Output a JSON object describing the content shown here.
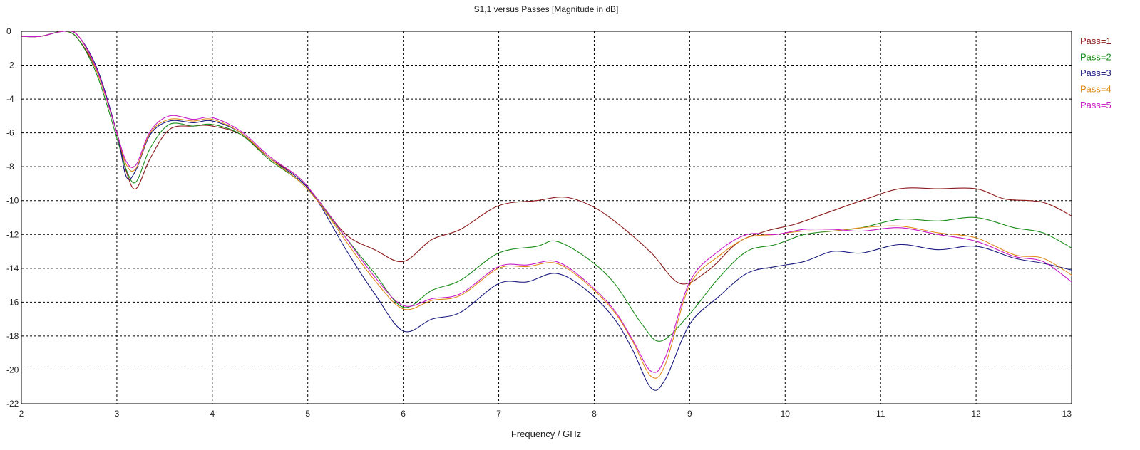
{
  "chart_data": {
    "type": "line",
    "title": "S1,1 versus Passes [Magnitude in dB]",
    "xlabel": "Frequency / GHz",
    "ylabel": "",
    "xlim": [
      2,
      13
    ],
    "ylim": [
      -22,
      0
    ],
    "x_ticks": [
      "2",
      "3",
      "4",
      "5",
      "6",
      "7",
      "8",
      "9",
      "10",
      "11",
      "12",
      "13"
    ],
    "y_ticks": [
      "0",
      "-2",
      "-4",
      "-6",
      "-8",
      "-10",
      "-12",
      "-14",
      "-16",
      "-18",
      "-20",
      "-22"
    ],
    "grid": true,
    "legend_position": "right",
    "series": [
      {
        "name": "Pass=1",
        "color": "#8b1a1a",
        "x": [
          2.0,
          2.2,
          2.45,
          2.6,
          2.8,
          3.0,
          3.1,
          3.2,
          3.35,
          3.55,
          3.8,
          4.0,
          4.3,
          4.6,
          4.9,
          5.1,
          5.4,
          5.7,
          6.0,
          6.3,
          6.6,
          7.0,
          7.4,
          7.7,
          8.0,
          8.3,
          8.6,
          8.9,
          9.2,
          9.5,
          9.8,
          10.1,
          10.4,
          10.8,
          11.2,
          11.6,
          12.0,
          12.3,
          12.7,
          13.0
        ],
        "y": [
          -0.3,
          -0.3,
          0.0,
          -0.5,
          -2.5,
          -6.0,
          -8.3,
          -9.3,
          -7.5,
          -5.8,
          -5.6,
          -5.6,
          -6.1,
          -7.5,
          -8.6,
          -9.9,
          -12.0,
          -12.9,
          -13.6,
          -12.3,
          -11.7,
          -10.3,
          -10.0,
          -9.8,
          -10.4,
          -11.6,
          -13.1,
          -14.9,
          -14.1,
          -12.5,
          -11.8,
          -11.4,
          -10.8,
          -10.0,
          -9.3,
          -9.3,
          -9.3,
          -9.9,
          -10.1,
          -10.9
        ]
      },
      {
        "name": "Pass=2",
        "color": "#1a8c1a",
        "x": [
          2.0,
          2.2,
          2.45,
          2.6,
          2.8,
          3.0,
          3.1,
          3.2,
          3.35,
          3.55,
          3.8,
          4.0,
          4.3,
          4.6,
          4.9,
          5.1,
          5.4,
          5.7,
          6.0,
          6.3,
          6.6,
          7.0,
          7.4,
          7.6,
          7.9,
          8.2,
          8.5,
          8.7,
          9.0,
          9.3,
          9.6,
          9.9,
          10.2,
          10.5,
          10.8,
          11.2,
          11.6,
          12.0,
          12.4,
          12.7,
          13.0
        ],
        "y": [
          -0.3,
          -0.3,
          0.0,
          -0.5,
          -2.7,
          -6.3,
          -8.2,
          -8.9,
          -6.9,
          -5.5,
          -5.6,
          -5.5,
          -6.1,
          -7.6,
          -8.8,
          -10.0,
          -12.2,
          -14.3,
          -16.3,
          -15.3,
          -14.7,
          -13.1,
          -12.7,
          -12.4,
          -13.3,
          -14.8,
          -17.3,
          -18.3,
          -16.7,
          -14.6,
          -13.0,
          -12.6,
          -12.0,
          -11.8,
          -11.6,
          -11.1,
          -11.2,
          -11.0,
          -11.6,
          -11.9,
          -12.8
        ]
      },
      {
        "name": "Pass=3",
        "color": "#1a1a80",
        "x": [
          2.0,
          2.2,
          2.45,
          2.6,
          2.8,
          3.0,
          3.1,
          3.2,
          3.35,
          3.55,
          3.8,
          4.0,
          4.3,
          4.6,
          4.9,
          5.1,
          5.4,
          5.7,
          6.0,
          6.3,
          6.6,
          7.0,
          7.3,
          7.6,
          7.9,
          8.2,
          8.4,
          8.6,
          8.75,
          9.0,
          9.3,
          9.6,
          9.9,
          10.2,
          10.5,
          10.8,
          11.2,
          11.6,
          12.0,
          12.4,
          12.7,
          13.0
        ],
        "y": [
          -0.3,
          -0.3,
          0.0,
          -0.3,
          -2.3,
          -6.0,
          -8.6,
          -8.2,
          -6.1,
          -5.3,
          -5.4,
          -5.3,
          -6.0,
          -7.5,
          -8.7,
          -10.0,
          -12.9,
          -15.5,
          -17.7,
          -17.0,
          -16.6,
          -14.9,
          -14.8,
          -14.3,
          -15.2,
          -16.9,
          -18.8,
          -21.1,
          -20.5,
          -17.3,
          -15.7,
          -14.3,
          -13.9,
          -13.6,
          -13.0,
          -13.1,
          -12.6,
          -12.9,
          -12.7,
          -13.4,
          -13.7,
          -14.1
        ]
      },
      {
        "name": "Pass=4",
        "color": "#e08a1a",
        "x": [
          2.0,
          2.2,
          2.45,
          2.6,
          2.8,
          3.0,
          3.1,
          3.2,
          3.35,
          3.55,
          3.8,
          4.0,
          4.3,
          4.6,
          4.9,
          5.1,
          5.4,
          5.7,
          6.0,
          6.3,
          6.6,
          7.0,
          7.3,
          7.6,
          7.9,
          8.2,
          8.4,
          8.6,
          8.75,
          9.0,
          9.3,
          9.6,
          9.9,
          10.2,
          10.5,
          10.8,
          11.2,
          11.6,
          12.0,
          12.4,
          12.7,
          13.0
        ],
        "y": [
          -0.3,
          -0.3,
          0.0,
          -0.3,
          -2.5,
          -6.0,
          -7.9,
          -8.1,
          -6.0,
          -5.2,
          -5.3,
          -5.2,
          -6.0,
          -7.5,
          -8.8,
          -10.0,
          -12.4,
          -14.7,
          -16.4,
          -15.9,
          -15.6,
          -14.0,
          -13.9,
          -13.7,
          -14.8,
          -16.5,
          -18.3,
          -20.4,
          -19.6,
          -15.0,
          -13.3,
          -12.2,
          -12.0,
          -11.8,
          -11.8,
          -11.6,
          -11.5,
          -11.9,
          -12.2,
          -13.2,
          -13.4,
          -14.4
        ]
      },
      {
        "name": "Pass=5",
        "color": "#c81ac8",
        "x": [
          2.0,
          2.2,
          2.45,
          2.6,
          2.8,
          3.0,
          3.1,
          3.2,
          3.35,
          3.55,
          3.8,
          4.0,
          4.3,
          4.6,
          4.9,
          5.1,
          5.4,
          5.7,
          6.0,
          6.3,
          6.6,
          7.0,
          7.3,
          7.6,
          7.9,
          8.2,
          8.4,
          8.6,
          8.75,
          9.0,
          9.3,
          9.6,
          9.9,
          10.2,
          10.5,
          10.8,
          11.2,
          11.6,
          12.0,
          12.4,
          12.7,
          13.0
        ],
        "y": [
          -0.3,
          -0.3,
          0.0,
          -0.3,
          -2.4,
          -6.0,
          -7.7,
          -7.9,
          -5.9,
          -5.0,
          -5.2,
          -5.1,
          -5.9,
          -7.4,
          -8.6,
          -9.9,
          -12.2,
          -14.5,
          -16.2,
          -15.8,
          -15.5,
          -13.9,
          -13.8,
          -13.6,
          -14.7,
          -16.4,
          -18.2,
          -20.1,
          -19.2,
          -14.8,
          -13.0,
          -12.0,
          -12.0,
          -11.7,
          -11.7,
          -11.8,
          -11.6,
          -12.0,
          -12.4,
          -13.3,
          -13.6,
          -14.8
        ]
      }
    ]
  }
}
